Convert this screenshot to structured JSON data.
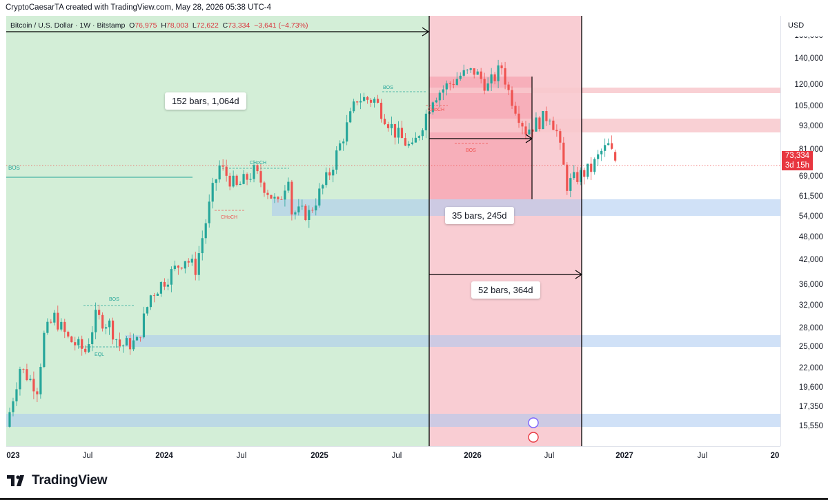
{
  "credit": "CryptoCaesarTA created with TradingView.com, May 28, 2026 05:38 UTC-4",
  "legend": {
    "symbol": "Bitcoin / U.S. Dollar · 1W · Bitstamp",
    "o_label": "O",
    "o_value": "76,975",
    "h_label": "H",
    "h_value": "78,003",
    "l_label": "L",
    "l_value": "72,622",
    "c_label": "C",
    "c_value": "73,334",
    "change": "−3,641 (−4.73%)"
  },
  "y_axis": {
    "unit": "USD",
    "ticks": [
      "140,000",
      "120,000",
      "105,000",
      "93,000",
      "81,000",
      "69,000",
      "61,500",
      "54,000",
      "48,000",
      "42,000",
      "36,000",
      "32,000",
      "28,000",
      "25,000",
      "22,000",
      "19,600",
      "17,350",
      "15,550"
    ],
    "top_partial": "160,000",
    "last_price": "73,334",
    "countdown": "3d 15h"
  },
  "x_axis": {
    "ticks": [
      {
        "label": "023",
        "major": true
      },
      {
        "label": "Jul",
        "major": false
      },
      {
        "label": "2024",
        "major": true
      },
      {
        "label": "Jul",
        "major": false
      },
      {
        "label": "2025",
        "major": true
      },
      {
        "label": "Jul",
        "major": false
      },
      {
        "label": "2026",
        "major": true
      },
      {
        "label": "Jul",
        "major": false
      },
      {
        "label": "2027",
        "major": true
      },
      {
        "label": "Jul",
        "major": false
      },
      {
        "label": "20",
        "major": true
      }
    ]
  },
  "annotations": {
    "range1": "152 bars, 1,064d",
    "range2": "35 bars, 245d",
    "range3": "52 bars, 364d",
    "bos_left": "BOS",
    "bos_a": "BOS",
    "bos_b": "BOS",
    "bos_c": "BOS",
    "eql": "EQL",
    "choch_a": "CHoCH",
    "choch_b": "CHoCH",
    "choch_c": "CHoCH"
  },
  "brand": "TradingView",
  "colors": {
    "bull": "#26a69a",
    "bear": "#ef5350",
    "green_zone": "#d3eed7",
    "red_zone": "#f9cdd3",
    "blue_zone": "#c9ddf6",
    "price_badge": "#e8363f"
  },
  "chart_data": {
    "type": "candlestick",
    "symbol": "Bitcoin / U.S. Dollar",
    "interval": "1W",
    "exchange": "Bitstamp",
    "scale": "log",
    "ylim": [
      14800,
      165000
    ],
    "last": {
      "open": 76975,
      "high": 78003,
      "low": 72622,
      "close": 73334
    },
    "path": [
      [
        "2023-01-01",
        16500
      ],
      [
        "2023-01-29",
        23000
      ],
      [
        "2023-03-05",
        20500
      ],
      [
        "2023-03-19",
        27500
      ],
      [
        "2023-04-09",
        30500
      ],
      [
        "2023-05-07",
        27000
      ],
      [
        "2023-06-11",
        25200
      ],
      [
        "2023-07-02",
        30500
      ],
      [
        "2023-07-30",
        29300
      ],
      [
        "2023-08-20",
        26000
      ],
      [
        "2023-09-24",
        26500
      ],
      [
        "2023-10-22",
        34500
      ],
      [
        "2023-11-19",
        37500
      ],
      [
        "2023-12-31",
        42500
      ],
      [
        "2024-01-21",
        40000
      ],
      [
        "2024-02-25",
        62000
      ],
      [
        "2024-03-10",
        71000
      ],
      [
        "2024-04-14",
        63000
      ],
      [
        "2024-05-19",
        69000
      ],
      [
        "2024-07-07",
        57000
      ],
      [
        "2024-07-28",
        68000
      ],
      [
        "2024-08-04",
        55000
      ],
      [
        "2024-09-08",
        54500
      ],
      [
        "2024-10-20",
        68500
      ],
      [
        "2024-11-10",
        80000
      ],
      [
        "2024-12-15",
        104000
      ],
      [
        "2025-01-19",
        103000
      ],
      [
        "2025-03-02",
        86000
      ],
      [
        "2025-04-06",
        78000
      ],
      [
        "2025-05-18",
        105000
      ],
      [
        "2025-07-13",
        118000
      ],
      [
        "2025-08-10",
        121000
      ],
      [
        "2025-09-07",
        111000
      ],
      [
        "2025-10-05",
        124000
      ],
      [
        "2025-10-19",
        108000
      ],
      [
        "2025-11-23",
        87000
      ],
      [
        "2026-01-11",
        95000
      ],
      [
        "2026-01-25",
        86000
      ],
      [
        "2026-02-15",
        64000
      ],
      [
        "2026-03-08",
        67000
      ],
      [
        "2026-04-05",
        70000
      ],
      [
        "2026-04-26",
        77000
      ],
      [
        "2026-05-10",
        79500
      ],
      [
        "2026-05-24",
        73334
      ]
    ],
    "zones": [
      {
        "kind": "bullish-range",
        "from": "2023-01-01",
        "to": "2025-10-05"
      },
      {
        "kind": "bearish-range",
        "from": "2025-10-05",
        "to": "2026-10-05"
      },
      {
        "kind": "support",
        "low": 54000,
        "high": 61500
      },
      {
        "kind": "support",
        "low": 24800,
        "high": 26700
      },
      {
        "kind": "support",
        "low": 15300,
        "high": 16800
      },
      {
        "kind": "resistance",
        "low": 114000,
        "high": 118000
      },
      {
        "kind": "resistance",
        "low": 88000,
        "high": 96000
      }
    ]
  }
}
